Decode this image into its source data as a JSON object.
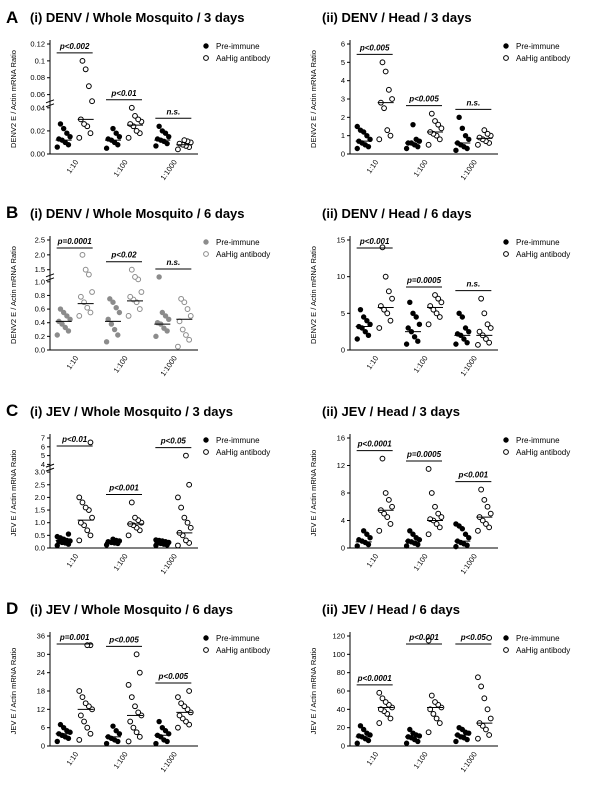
{
  "figure": {
    "rows": [
      {
        "letter": "A",
        "left_title": "(i) DENV / Whole Mosquito / 3 days",
        "right_title": "(ii) DENV / Head / 3 days"
      },
      {
        "letter": "B",
        "left_title": "(i) DENV / Whole Mosquito / 6 days",
        "right_title": "(ii) DENV / Head / 6 days"
      },
      {
        "letter": "C",
        "left_title": "(i) JEV / Whole Mosquito / 3 days",
        "right_title": "(ii) JEV / Head / 3 days"
      },
      {
        "letter": "D",
        "left_title": "(i) JEV / Whole Mosquito / 6 days",
        "right_title": "(ii) JEV / Head / 6 days"
      }
    ]
  },
  "colors": {
    "ink": "#000000",
    "gray_marker": "#8c8c8c"
  },
  "chart_data": [
    {
      "id": "A-i",
      "type": "scatter",
      "title": "(i) DENV / Whole Mosquito / 3 days",
      "ylabel": "DENV2 E / Actin mRNA Ratio",
      "categories": [
        "1:10",
        "1:100",
        "1:1000"
      ],
      "yticks": [
        "0.00",
        "0.02",
        "0.04",
        "0.06",
        "0.08",
        "0.1",
        "0.12"
      ],
      "legend": [
        "Pre-immune",
        "AaHig antibody"
      ],
      "legend_position": "top-right",
      "marker_style": "black",
      "series": [
        {
          "name": "Pre-immune",
          "values": [
            [
              0.006,
              0.008,
              0.01,
              0.012,
              0.013,
              0.015,
              0.018,
              0.022,
              0.026
            ],
            [
              0.005,
              0.008,
              0.01,
              0.012,
              0.013,
              0.015,
              0.018,
              0.022
            ],
            [
              0.007,
              0.009,
              0.011,
              0.012,
              0.013,
              0.015,
              0.018,
              0.02,
              0.024
            ]
          ],
          "medians": [
            0.012,
            0.012,
            0.012
          ]
        },
        {
          "name": "AaHig antibody",
          "values": [
            [
              0.014,
              0.018,
              0.024,
              0.026,
              0.03,
              0.05,
              0.07,
              0.09,
              0.1
            ],
            [
              0.014,
              0.018,
              0.02,
              0.024,
              0.026,
              0.028,
              0.03,
              0.033,
              0.04
            ],
            [
              0.004,
              0.006,
              0.007,
              0.008,
              0.009,
              0.01,
              0.011,
              0.012
            ]
          ],
          "medians": [
            0.03,
            0.025,
            0.008
          ]
        }
      ],
      "annotations": [
        "p<0.002",
        "p<0.01",
        "n.s."
      ]
    },
    {
      "id": "A-ii",
      "type": "scatter",
      "title": "(ii) DENV / Head / 3 days",
      "ylabel": "DENV2 E / Actin mRNA Ratio",
      "categories": [
        "1:10",
        "1:100",
        "1:1000"
      ],
      "yticks": [
        "0",
        "1",
        "2",
        "3",
        "4",
        "5",
        "6"
      ],
      "legend": [
        "Pre-immune",
        "AaHig antibody"
      ],
      "legend_position": "top-right",
      "marker_style": "black",
      "series": [
        {
          "name": "Pre-immune",
          "values": [
            [
              0.3,
              0.4,
              0.5,
              0.6,
              0.7,
              0.8,
              1.0,
              1.2,
              1.3,
              1.5
            ],
            [
              0.3,
              0.4,
              0.5,
              0.6,
              0.6,
              0.7,
              0.8,
              1.6
            ],
            [
              0.2,
              0.3,
              0.4,
              0.5,
              0.6,
              0.8,
              1.0,
              1.4,
              2.0
            ]
          ],
          "medians": [
            0.7,
            0.6,
            0.6
          ]
        },
        {
          "name": "AaHig antibody",
          "values": [
            [
              0.8,
              1.0,
              1.3,
              2.5,
              2.8,
              3.0,
              3.5,
              4.5,
              5.0
            ],
            [
              0.5,
              0.8,
              1.0,
              1.1,
              1.2,
              1.4,
              1.6,
              1.8,
              2.2
            ],
            [
              0.5,
              0.6,
              0.7,
              0.8,
              0.9,
              1.0,
              1.1,
              1.3
            ]
          ],
          "medians": [
            2.8,
            1.2,
            0.85
          ]
        }
      ],
      "annotations": [
        "p<0.005",
        "p<0.005",
        "n.s."
      ]
    },
    {
      "id": "B-i",
      "type": "scatter",
      "title": "(i) DENV / Whole Mosquito / 6 days",
      "ylabel": "DENV2 E / Actin mRNA Ratio",
      "categories": [
        "1:10",
        "1:100",
        "1:1000"
      ],
      "yticks": [
        "0.0",
        "0.2",
        "0.4",
        "0.6",
        "0.8",
        "1.0",
        "1.5",
        "2.0",
        "2.5"
      ],
      "legend": [
        "Pre-immune",
        "AaHig antibody"
      ],
      "legend_position": "top-right",
      "marker_style": "gray",
      "series": [
        {
          "name": "Pre-immune",
          "values": [
            [
              0.22,
              0.28,
              0.33,
              0.38,
              0.42,
              0.45,
              0.5,
              0.55,
              0.6
            ],
            [
              0.12,
              0.22,
              0.3,
              0.38,
              0.45,
              0.55,
              0.62,
              0.7,
              0.75
            ],
            [
              0.2,
              0.28,
              0.32,
              0.38,
              0.4,
              0.45,
              0.5,
              0.55,
              1.2
            ]
          ],
          "medians": [
            0.42,
            0.42,
            0.38
          ]
        },
        {
          "name": "AaHig antibody",
          "values": [
            [
              0.5,
              0.55,
              0.62,
              0.7,
              0.78,
              0.85,
              1.3,
              1.5,
              2.0
            ],
            [
              0.5,
              0.6,
              0.7,
              0.74,
              0.78,
              0.85,
              1.1,
              1.2,
              1.5
            ],
            [
              0.05,
              0.15,
              0.22,
              0.3,
              0.42,
              0.5,
              0.6,
              0.7,
              0.75
            ]
          ],
          "medians": [
            0.68,
            0.72,
            0.45
          ]
        }
      ],
      "annotations": [
        "p=0.0001",
        "p<0.02",
        "n.s."
      ]
    },
    {
      "id": "B-ii",
      "type": "scatter",
      "title": "(ii) DENV / Head / 6 days",
      "ylabel": "DENV2 E / Actin mRNA Ratio",
      "categories": [
        "1:10",
        "1:100",
        "1:1000"
      ],
      "yticks": [
        "0",
        "5",
        "10",
        "15"
      ],
      "legend": [
        "Pre-immune",
        "AaHig antibody"
      ],
      "legend_position": "top-right",
      "marker_style": "black",
      "series": [
        {
          "name": "Pre-immune",
          "values": [
            [
              1.5,
              2.0,
              2.5,
              3.0,
              3.2,
              3.5,
              4.0,
              4.5,
              5.5
            ],
            [
              0.8,
              1.2,
              1.8,
              2.5,
              3.0,
              3.5,
              4.5,
              5.0,
              6.5
            ],
            [
              0.8,
              1.0,
              1.5,
              2.0,
              2.2,
              2.5,
              3.0,
              4.5,
              5.0
            ]
          ],
          "medians": [
            3.2,
            2.5,
            2.0
          ]
        },
        {
          "name": "AaHig antibody",
          "values": [
            [
              3.0,
              4.0,
              5.0,
              5.5,
              6.0,
              7.0,
              8.0,
              10.0,
              14.0
            ],
            [
              3.5,
              4.5,
              5.0,
              5.5,
              6.0,
              6.5,
              7.0,
              7.5
            ],
            [
              0.7,
              1.0,
              1.5,
              2.0,
              2.5,
              3.0,
              3.5,
              5.0,
              7.0
            ]
          ],
          "medians": [
            5.8,
            5.8,
            2.0
          ]
        }
      ],
      "annotations": [
        "p<0.001",
        "p=0.0005",
        "n.s."
      ]
    },
    {
      "id": "C-i",
      "type": "scatter",
      "title": "(i) JEV / Whole Mosquito / 3 days",
      "ylabel": "JEV E / Actin mRNA Ratio",
      "categories": [
        "1:10",
        "1:100",
        "1:1000"
      ],
      "yticks": [
        "0.0",
        "0.5",
        "1.0",
        "1.5",
        "2.0",
        "2.5",
        "3.0",
        "4",
        "5",
        "6",
        "7"
      ],
      "legend": [
        "Pre-immune",
        "AaHig antibody"
      ],
      "legend_position": "top-right",
      "marker_style": "black",
      "series": [
        {
          "name": "Pre-immune",
          "values": [
            [
              0.1,
              0.15,
              0.2,
              0.22,
              0.25,
              0.28,
              0.3,
              0.35,
              0.4,
              0.45,
              0.55
            ],
            [
              0.12,
              0.18,
              0.2,
              0.22,
              0.25,
              0.28,
              0.3,
              0.35
            ],
            [
              0.1,
              0.12,
              0.15,
              0.18,
              0.2,
              0.22,
              0.25,
              0.28,
              0.3,
              0.32
            ]
          ],
          "medians": [
            0.3,
            0.22,
            0.2
          ]
        },
        {
          "name": "AaHig antibody",
          "values": [
            [
              0.3,
              0.5,
              0.7,
              0.9,
              1.0,
              1.2,
              1.5,
              1.6,
              1.8,
              2.0,
              6.5
            ],
            [
              0.5,
              0.7,
              0.8,
              0.9,
              0.95,
              1.0,
              1.1,
              1.2,
              1.8
            ],
            [
              0.1,
              0.2,
              0.3,
              0.5,
              0.6,
              0.8,
              1.0,
              1.2,
              1.6,
              2.0,
              2.5,
              5.0
            ]
          ],
          "medians": [
            1.1,
            0.95,
            0.6
          ]
        }
      ],
      "annotations": [
        "p<0.01",
        "p<0.001",
        "p<0.05"
      ]
    },
    {
      "id": "C-ii",
      "type": "scatter",
      "title": "(ii) JEV / Head / 3 days",
      "ylabel": "JEV E / Actin mRNA Ratio",
      "categories": [
        "1:10",
        "1:100",
        "1:1000"
      ],
      "yticks": [
        "0",
        "4",
        "8",
        "12",
        "16"
      ],
      "legend": [
        "Pre-immune",
        "AaHig antibody"
      ],
      "legend_position": "top-right",
      "marker_style": "black",
      "series": [
        {
          "name": "Pre-immune",
          "values": [
            [
              0.3,
              0.5,
              0.8,
              1.0,
              1.2,
              1.5,
              2.0,
              2.5
            ],
            [
              0.3,
              0.5,
              0.7,
              0.9,
              1.0,
              1.2,
              1.5,
              2.0,
              2.5
            ],
            [
              0.2,
              0.4,
              0.6,
              0.8,
              1.0,
              1.5,
              2.0,
              2.8,
              3.2,
              3.5
            ]
          ],
          "medians": [
            0.9,
            1.0,
            1.0
          ]
        },
        {
          "name": "AaHig antibody",
          "values": [
            [
              2.5,
              3.5,
              4.5,
              5.0,
              5.5,
              6.0,
              7.0,
              8.0,
              13.0
            ],
            [
              2.0,
              3.0,
              3.5,
              4.0,
              4.2,
              4.5,
              5.0,
              6.0,
              8.0,
              11.5
            ],
            [
              2.5,
              3.0,
              3.5,
              4.0,
              4.5,
              5.0,
              6.0,
              7.0,
              8.5
            ]
          ],
          "medians": [
            5.5,
            4.0,
            4.5
          ]
        }
      ],
      "annotations": [
        "p<0.0001",
        "p=0.0005",
        "p<0.001"
      ]
    },
    {
      "id": "D-i",
      "type": "scatter",
      "title": "(i) JEV / Whole Mosquito / 6 days",
      "ylabel": "JEV E / Actin mRNA Ratio",
      "categories": [
        "1:10",
        "1:100",
        "1:1000"
      ],
      "yticks": [
        "0",
        "6",
        "12",
        "18",
        "24",
        "30",
        "36"
      ],
      "legend": [
        "Pre-immune",
        "AaHig antibody"
      ],
      "legend_position": "top-right",
      "marker_style": "black",
      "series": [
        {
          "name": "Pre-immune",
          "values": [
            [
              1.5,
              2.5,
              3.0,
              3.5,
              4.0,
              4.5,
              5.0,
              6.0,
              7.0
            ],
            [
              0.8,
              1.5,
              2.0,
              2.5,
              3.0,
              4.0,
              5.0,
              6.5
            ],
            [
              0.8,
              1.5,
              2.0,
              3.0,
              3.5,
              4.0,
              5.0,
              6.0,
              8.0
            ]
          ],
          "medians": [
            4.0,
            3.0,
            3.5
          ]
        },
        {
          "name": "AaHig antibody",
          "values": [
            [
              2.0,
              4.0,
              6.0,
              8.0,
              10.0,
              12.0,
              13.0,
              14.0,
              16.0,
              18.0,
              33.0,
              33.0
            ],
            [
              1.5,
              3.0,
              4.5,
              6.0,
              8.0,
              10.0,
              11.0,
              13.0,
              16.0,
              20.0,
              24.0,
              30.0
            ],
            [
              6.0,
              7.0,
              8.0,
              9.0,
              10.0,
              11.0,
              12.0,
              13.0,
              14.0,
              16.0,
              18.0
            ]
          ],
          "medians": [
            12.0,
            10.0,
            11.0
          ]
        }
      ],
      "annotations": [
        "p=0.001",
        "p<0.005",
        "p<0.005"
      ]
    },
    {
      "id": "D-ii",
      "type": "scatter",
      "title": "(ii) JEV / Head / 6 days",
      "ylabel": "JEV E / Actin mRNA Ratio",
      "categories": [
        "1:10",
        "1:100",
        "1:1000"
      ],
      "yticks": [
        "0",
        "20",
        "40",
        "60",
        "80",
        "100",
        "120"
      ],
      "legend": [
        "Pre-immune",
        "AaHig antibody"
      ],
      "legend_position": "top-right",
      "marker_style": "black",
      "series": [
        {
          "name": "Pre-immune",
          "values": [
            [
              3,
              6,
              8,
              10,
              11,
              12,
              14,
              18,
              22
            ],
            [
              3,
              5,
              7,
              9,
              10,
              11,
              12,
              14,
              18
            ],
            [
              5,
              7,
              9,
              10,
              12,
              14,
              15,
              18,
              20
            ]
          ],
          "medians": [
            10,
            10,
            12
          ]
        },
        {
          "name": "AaHig antibody",
          "values": [
            [
              25,
              30,
              35,
              38,
              40,
              42,
              45,
              48,
              52,
              58
            ],
            [
              15,
              25,
              30,
              35,
              40,
              42,
              45,
              48,
              55,
              115
            ],
            [
              8,
              12,
              18,
              22,
              25,
              30,
              40,
              52,
              65,
              75,
              118
            ]
          ],
          "medians": [
            42,
            42,
            25
          ]
        }
      ],
      "annotations": [
        "p<0.0001",
        "p<0.001",
        "p<0.05"
      ]
    }
  ]
}
